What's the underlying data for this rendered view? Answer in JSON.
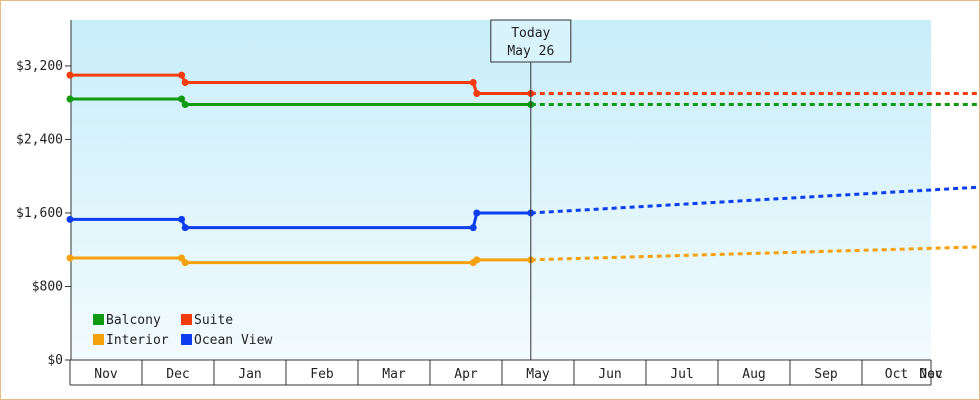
{
  "chart_data": {
    "type": "line",
    "step": true,
    "y_ticks": [
      "$0",
      "$800",
      "$1,600",
      "$2,400",
      "$3,200"
    ],
    "y_tick_values": [
      0,
      800,
      1600,
      2400,
      3200
    ],
    "ylim": [
      0,
      3700
    ],
    "x_labels": [
      "Nov",
      "Dec",
      "Jan",
      "Feb",
      "Mar",
      "Apr",
      "May",
      "Jun",
      "Jul",
      "Aug",
      "Sep",
      "Oct",
      "Nov",
      "Dec"
    ],
    "today_marker": {
      "line1": "Today",
      "line2": "May 26",
      "x": 6.4
    },
    "grid": false,
    "legend_position": "bottom-left",
    "series": [
      {
        "name": "Balcony",
        "color": "#0f9a0f",
        "points": [
          [
            0.0,
            2840
          ],
          [
            1.55,
            2840
          ],
          [
            1.6,
            2780
          ],
          [
            6.4,
            2780
          ]
        ],
        "forecast": [
          [
            6.4,
            2780
          ],
          [
            13.5,
            2780
          ]
        ]
      },
      {
        "name": "Suite",
        "color": "#f23c0c",
        "points": [
          [
            0.0,
            3100
          ],
          [
            1.55,
            3100
          ],
          [
            1.6,
            3020
          ],
          [
            5.6,
            3020
          ],
          [
            5.65,
            2900
          ],
          [
            6.4,
            2900
          ]
        ],
        "forecast": [
          [
            6.4,
            2900
          ],
          [
            13.5,
            2900
          ]
        ]
      },
      {
        "name": "Interior",
        "color": "#f5a10c",
        "points": [
          [
            0.0,
            1110
          ],
          [
            1.55,
            1110
          ],
          [
            1.6,
            1060
          ],
          [
            5.6,
            1060
          ],
          [
            5.65,
            1090
          ],
          [
            6.4,
            1090
          ]
        ],
        "forecast": [
          [
            6.4,
            1090
          ],
          [
            13.5,
            1250
          ]
        ]
      },
      {
        "name": "Ocean View",
        "color": "#0c3ef0",
        "points": [
          [
            0.0,
            1530
          ],
          [
            1.55,
            1530
          ],
          [
            1.6,
            1440
          ],
          [
            5.6,
            1440
          ],
          [
            5.65,
            1600
          ],
          [
            6.4,
            1600
          ]
        ],
        "forecast": [
          [
            6.4,
            1600
          ],
          [
            13.5,
            1920
          ]
        ]
      }
    ]
  }
}
